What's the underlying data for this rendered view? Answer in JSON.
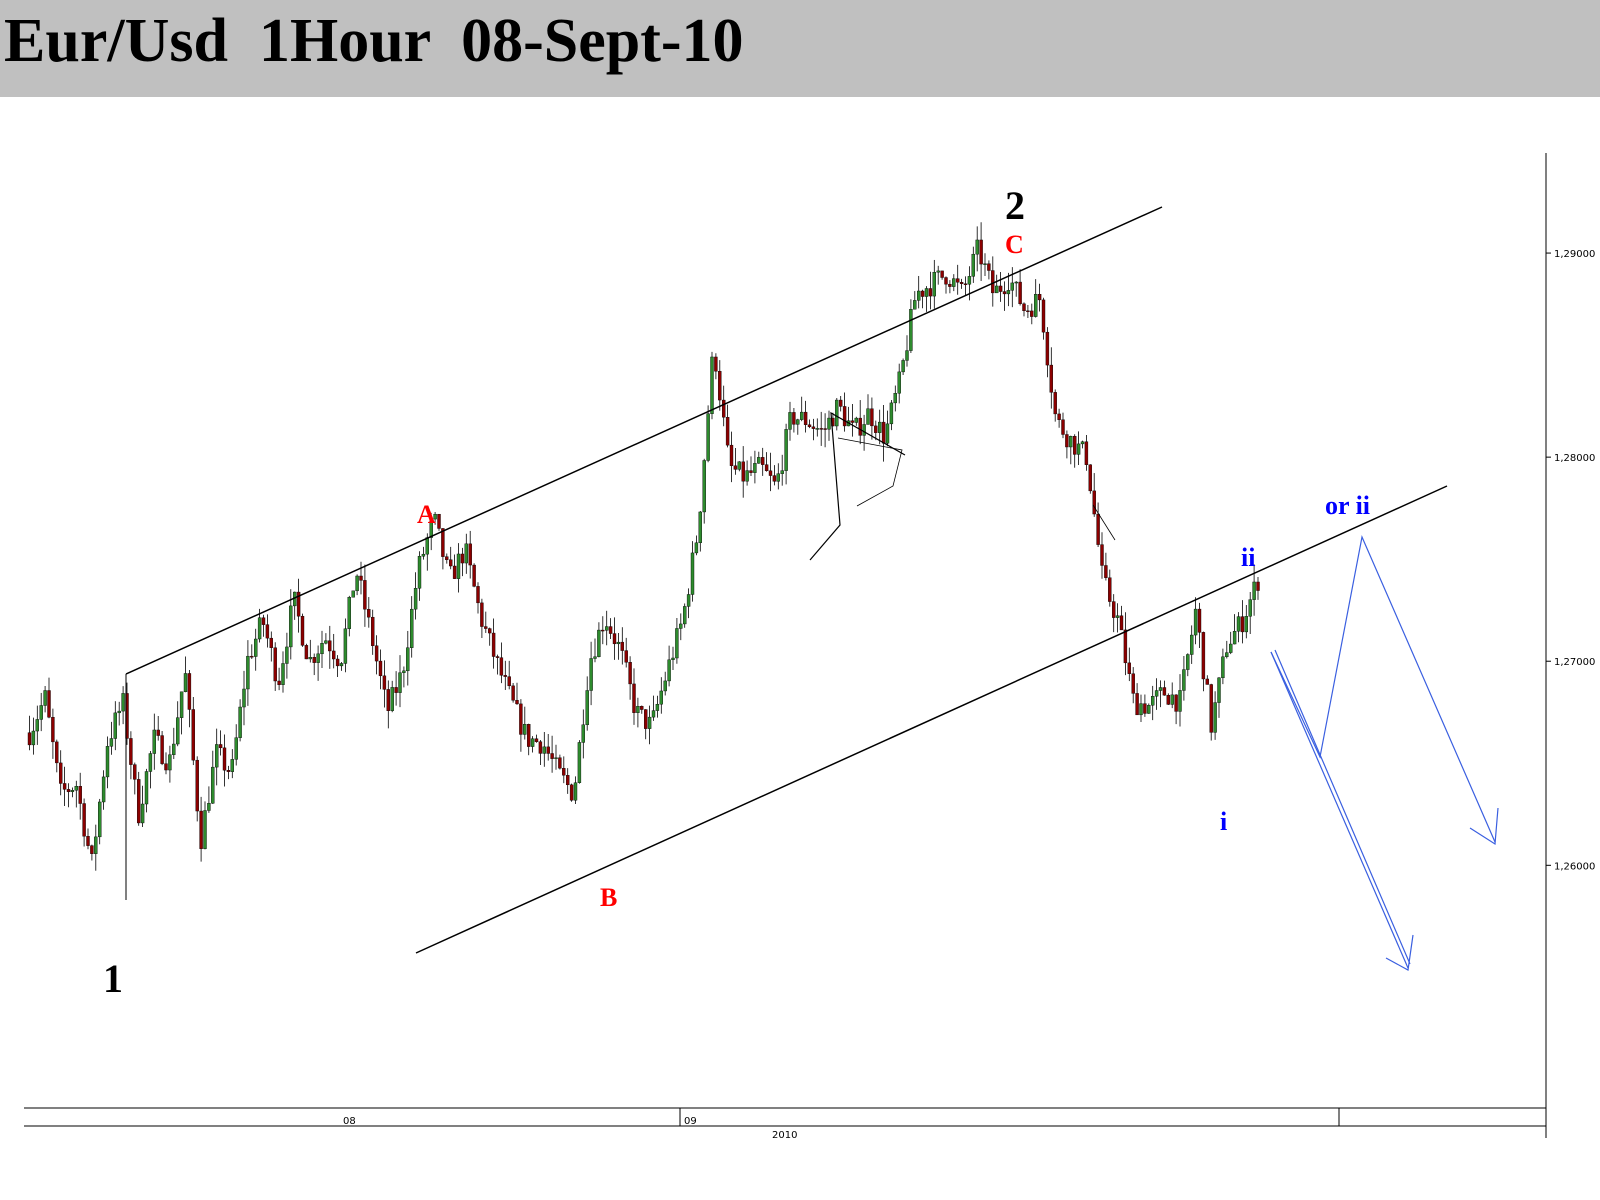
{
  "title": "Eur/Usd  1Hour  08-Sept-10",
  "colors": {
    "title_bg": "#c0c0c0",
    "bull_candle": "#2e8b2e",
    "bear_candle": "#8b0000",
    "wick": "#000000",
    "label_black": "#000000",
    "label_red": "#ff0000",
    "label_blue": "#0000ff",
    "projection": "#3a5fe0"
  },
  "chart_data": {
    "type": "candlestick",
    "title": "Eur/Usd  1Hour  08-Sept-10",
    "y_tick_labels": [
      "1,29000",
      "1,28000",
      "1,27000",
      "1,26000"
    ],
    "y_ticks": [
      1.29,
      1.28,
      1.27,
      1.26
    ],
    "ylim": [
      1.2485,
      1.2975
    ],
    "x_tick_labels": [
      "08",
      "09"
    ],
    "x_year_label": "2010",
    "grid": false,
    "price_path": [
      1.2665,
      1.2682,
      1.2635,
      1.264,
      1.26,
      1.266,
      1.268,
      1.2625,
      1.2662,
      1.265,
      1.2695,
      1.2612,
      1.2655,
      1.2645,
      1.27,
      1.272,
      1.269,
      1.273,
      1.27,
      1.2712,
      1.27,
      1.2745,
      1.2712,
      1.2675,
      1.2695,
      1.2745,
      1.277,
      1.274,
      1.2755,
      1.2722,
      1.27,
      1.268,
      1.2662,
      1.266,
      1.2645,
      1.2635,
      1.27,
      1.2722,
      1.2705,
      1.2675,
      1.2668,
      1.2695,
      1.272,
      1.2765,
      1.2855,
      1.2795,
      1.279,
      1.2795,
      1.2785,
      1.282,
      1.2818,
      1.2812,
      1.2825,
      1.2812,
      1.2822,
      1.281,
      1.2838,
      1.288,
      1.2885,
      1.289,
      1.288,
      1.2902,
      1.288,
      1.2888,
      1.2872,
      1.2878,
      1.2818,
      1.2808,
      1.28,
      1.274,
      1.272,
      1.268,
      1.2678,
      1.2685,
      1.268,
      1.2725,
      1.2668,
      1.2708,
      1.272,
      1.274
    ],
    "wave_labels": [
      {
        "text": "1",
        "price": 1.257,
        "color": "black"
      },
      {
        "text": "A",
        "price": 1.2795,
        "color": "red"
      },
      {
        "text": "B",
        "price": 1.26,
        "color": "red"
      },
      {
        "text": "C",
        "price": 1.2925,
        "color": "red"
      },
      {
        "text": "2",
        "price": 1.2945,
        "color": "black"
      },
      {
        "text": "i",
        "price": 1.2645,
        "color": "blue"
      },
      {
        "text": "ii",
        "price": 1.277,
        "color": "blue"
      },
      {
        "text": "or ii",
        "price": 1.28,
        "color": "blue"
      }
    ]
  }
}
